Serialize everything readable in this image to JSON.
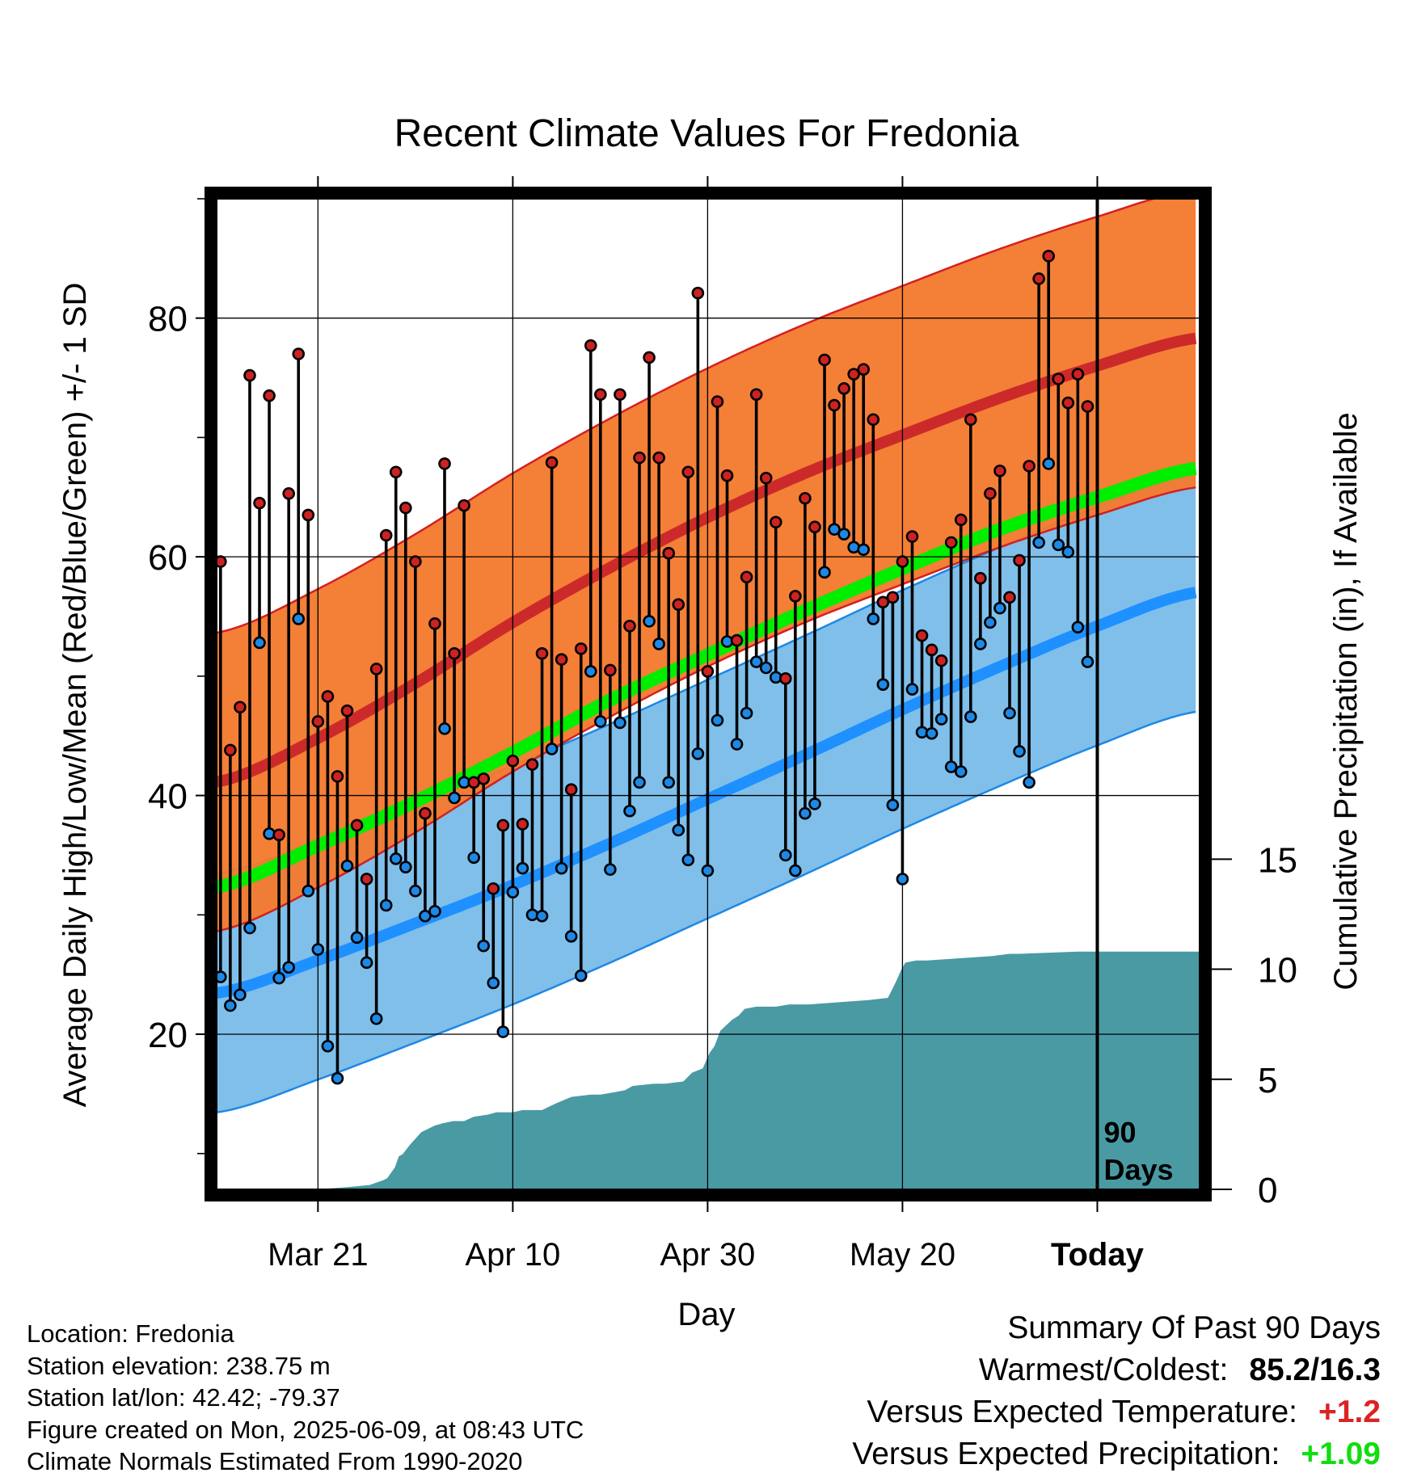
{
  "chart_data": {
    "type": "line",
    "title": "Recent Climate Values For Fredonia",
    "xlabel": "Day",
    "ylabel": "Average Daily High/Low/Mean (Red/Blue/Green) +/- 1 SD",
    "y2label": "Cumulative Precipitation (in), If Available",
    "x_tick_labels": [
      "Mar 21",
      "Apr 10",
      "Apr 30",
      "May 20",
      "Today"
    ],
    "x_tick_days": [
      10,
      30,
      50,
      70,
      90
    ],
    "xlim_days": [
      -0.4,
      100.5
    ],
    "ylim": [
      7,
      90
    ],
    "y_ticks": [
      20,
      40,
      60,
      80
    ],
    "y_minor_ticks": [
      10,
      30,
      50,
      70,
      90
    ],
    "y2lim": [
      0,
      45
    ],
    "y2_ticks": [
      0,
      5,
      10,
      15
    ],
    "today_marker": {
      "day": 90,
      "label_line1": "90",
      "label_line2": "Days"
    },
    "normals": {
      "knot_days": [
        0,
        10,
        20,
        30,
        40,
        50,
        60,
        70,
        80,
        90,
        100
      ],
      "high_mean": [
        41.2,
        44.8,
        49.4,
        54.5,
        59.1,
        63.3,
        67.0,
        70.2,
        73.3,
        76.0,
        78.3
      ],
      "high_sd": 12.5,
      "low_mean": [
        23.5,
        26.2,
        29.3,
        32.5,
        36.0,
        39.7,
        43.4,
        47.2,
        50.8,
        54.2,
        57.0
      ],
      "low_sd": 10.0,
      "mean_mean": [
        32.4,
        35.8,
        39.5,
        43.6,
        48.0,
        51.8,
        55.5,
        59.0,
        62.3,
        65.0,
        67.4
      ]
    },
    "series": [
      {
        "name": "High",
        "values": [
          59.6,
          43.8,
          47.4,
          75.2,
          64.5,
          73.5,
          36.7,
          65.3,
          77.0,
          63.5,
          46.2,
          48.3,
          41.6,
          47.1,
          37.5,
          33.0,
          50.6,
          61.8,
          67.1,
          64.1,
          59.6,
          38.5,
          54.4,
          67.8,
          51.9,
          64.3,
          41.1,
          41.4,
          32.2,
          37.5,
          42.9,
          37.6,
          42.6,
          51.9,
          67.9,
          51.4,
          40.5,
          52.3,
          77.7,
          73.6,
          50.5,
          73.6,
          54.2,
          68.3,
          76.7,
          68.3,
          60.3,
          56.0,
          67.1,
          82.1,
          50.4,
          73.0,
          66.8,
          53.0,
          58.3,
          73.6,
          66.6,
          62.9,
          49.8,
          56.7,
          64.9,
          62.5,
          76.5,
          72.7,
          74.1,
          75.3,
          75.7,
          71.5,
          56.2,
          56.6,
          59.6,
          61.7,
          53.4,
          52.2,
          51.3,
          61.2,
          63.1,
          71.5,
          58.2,
          65.3,
          67.2,
          56.6,
          59.7,
          67.6,
          83.3,
          85.2,
          74.9,
          72.9,
          75.3,
          72.6
        ]
      },
      {
        "name": "Low",
        "values": [
          24.8,
          22.4,
          23.3,
          28.9,
          52.8,
          36.8,
          24.7,
          25.6,
          54.8,
          32.0,
          27.1,
          19.0,
          16.3,
          34.1,
          28.1,
          26.0,
          21.3,
          30.8,
          34.7,
          34.0,
          32.0,
          29.9,
          30.3,
          45.6,
          39.8,
          41.1,
          34.8,
          27.4,
          24.3,
          20.2,
          31.9,
          33.9,
          30.0,
          29.9,
          43.9,
          33.9,
          28.2,
          24.9,
          50.4,
          46.2,
          33.8,
          46.1,
          38.7,
          41.1,
          54.6,
          52.7,
          41.1,
          37.1,
          34.6,
          43.5,
          33.7,
          46.3,
          52.9,
          44.3,
          46.9,
          51.2,
          50.7,
          49.9,
          35.0,
          33.7,
          38.5,
          39.3,
          58.7,
          62.3,
          61.9,
          60.8,
          60.6,
          54.8,
          49.3,
          39.2,
          33.0,
          48.9,
          45.3,
          45.2,
          46.4,
          42.4,
          42.0,
          46.6,
          52.7,
          54.5,
          55.7,
          46.9,
          43.7,
          41.1,
          61.2,
          67.8,
          61.0,
          60.4,
          54.1,
          51.2
        ]
      },
      {
        "name": "Cumulative Precipitation",
        "days": [
          9.8,
          13,
          15.3,
          16.6,
          17.1,
          17.9,
          18.3,
          18.7,
          19.4,
          20.6,
          22,
          22.8,
          23.9,
          25,
          26,
          27.5,
          28.3,
          29.1,
          30,
          31,
          32,
          33,
          34.4,
          36,
          38,
          39,
          41.5,
          42.3,
          44.5,
          45.6,
          47.5,
          48.4,
          49.5,
          50.2,
          50.7,
          51.3,
          52.5,
          53.2,
          53.8,
          55,
          57,
          58.4,
          60.4,
          66.5,
          68.5,
          69.3,
          69.9,
          70.3,
          71.4,
          72.5,
          79.2,
          81,
          82,
          88,
          90,
          100.5
        ],
        "values": [
          0,
          0.1,
          0.2,
          0.4,
          0.5,
          1,
          1.5,
          1.6,
          2,
          2.6,
          2.9,
          3,
          3.1,
          3.1,
          3.3,
          3.4,
          3.5,
          3.5,
          3.5,
          3.6,
          3.6,
          3.6,
          3.9,
          4.2,
          4.3,
          4.3,
          4.5,
          4.7,
          4.8,
          4.8,
          4.9,
          5.3,
          5.5,
          6.2,
          6.5,
          7.2,
          7.7,
          7.9,
          8.2,
          8.3,
          8.3,
          8.4,
          8.4,
          8.6,
          8.7,
          9.4,
          10.0,
          10.3,
          10.4,
          10.4,
          10.6,
          10.7,
          10.7,
          10.8,
          10.8,
          10.8
        ]
      }
    ],
    "legend": "none",
    "grid": true,
    "colors": {
      "high_band": "#f47a2f",
      "high_band_edge": "#d42020",
      "high_mean": "#cc2a2a",
      "low_band": "#7fbfea",
      "low_band_edge": "#1e88e5",
      "low_mean": "#1e90ff",
      "mean_line": "#00ee00",
      "high_dot": "#cc2222",
      "low_dot": "#1e88e5",
      "precip": "#4a9aa4"
    }
  },
  "info": {
    "location": "Location: Fredonia",
    "elevation": "Station elevation: 238.75 m",
    "latlon": "Station lat/lon: 42.42; -79.37",
    "created": "Figure created on Mon, 2025-06-09, at 08:43 UTC",
    "normals": "Climate Normals Estimated From 1990-2020"
  },
  "summary": {
    "title": "Summary Of Past 90 Days",
    "warmest_coldest_label": "Warmest/Coldest:",
    "warmest_coldest_value": "85.2/16.3",
    "temp_label": "Versus Expected Temperature:",
    "temp_value": "+1.2",
    "temp_color": "#dd2222",
    "precip_label": "Versus Expected Precipitation:",
    "precip_value": "+1.09",
    "precip_color": "#11dd11"
  }
}
